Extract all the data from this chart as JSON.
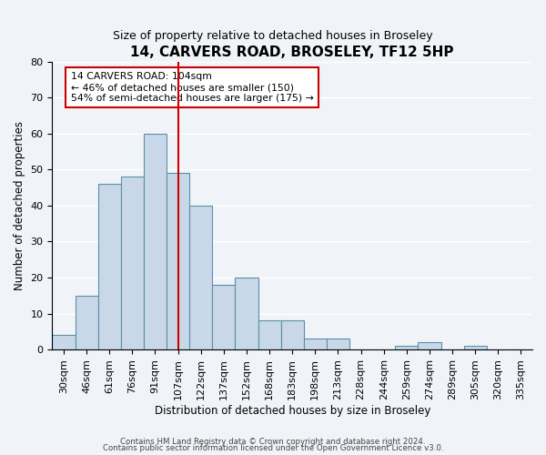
{
  "title": "14, CARVERS ROAD, BROSELEY, TF12 5HP",
  "subtitle": "Size of property relative to detached houses in Broseley",
  "xlabel": "Distribution of detached houses by size in Broseley",
  "ylabel": "Number of detached properties",
  "bar_color": "#c8d8e8",
  "bar_edge_color": "#5b8fa8",
  "background_color": "#f0f4f8",
  "bins": [
    "30sqm",
    "46sqm",
    "61sqm",
    "76sqm",
    "91sqm",
    "107sqm",
    "122sqm",
    "137sqm",
    "152sqm",
    "168sqm",
    "183sqm",
    "198sqm",
    "213sqm",
    "228sqm",
    "244sqm",
    "259sqm",
    "274sqm",
    "289sqm",
    "305sqm",
    "320sqm",
    "335sqm"
  ],
  "counts": [
    4,
    15,
    46,
    48,
    60,
    49,
    40,
    18,
    20,
    8,
    8,
    3,
    3,
    0,
    0,
    1,
    2,
    0,
    1,
    0,
    0
  ],
  "ylim": [
    0,
    80
  ],
  "yticks": [
    0,
    10,
    20,
    30,
    40,
    50,
    60,
    70,
    80
  ],
  "vline_x_index": 5,
  "annotation_line1": "14 CARVERS ROAD: 104sqm",
  "annotation_line2": "← 46% of detached houses are smaller (150)",
  "annotation_line3": "54% of semi-detached houses are larger (175) →",
  "annotation_box_color": "#ffffff",
  "annotation_box_edge": "#cc0000",
  "vline_color": "#cc0000",
  "footer1": "Contains HM Land Registry data © Crown copyright and database right 2024.",
  "footer2": "Contains public sector information licensed under the Open Government Licence v3.0."
}
